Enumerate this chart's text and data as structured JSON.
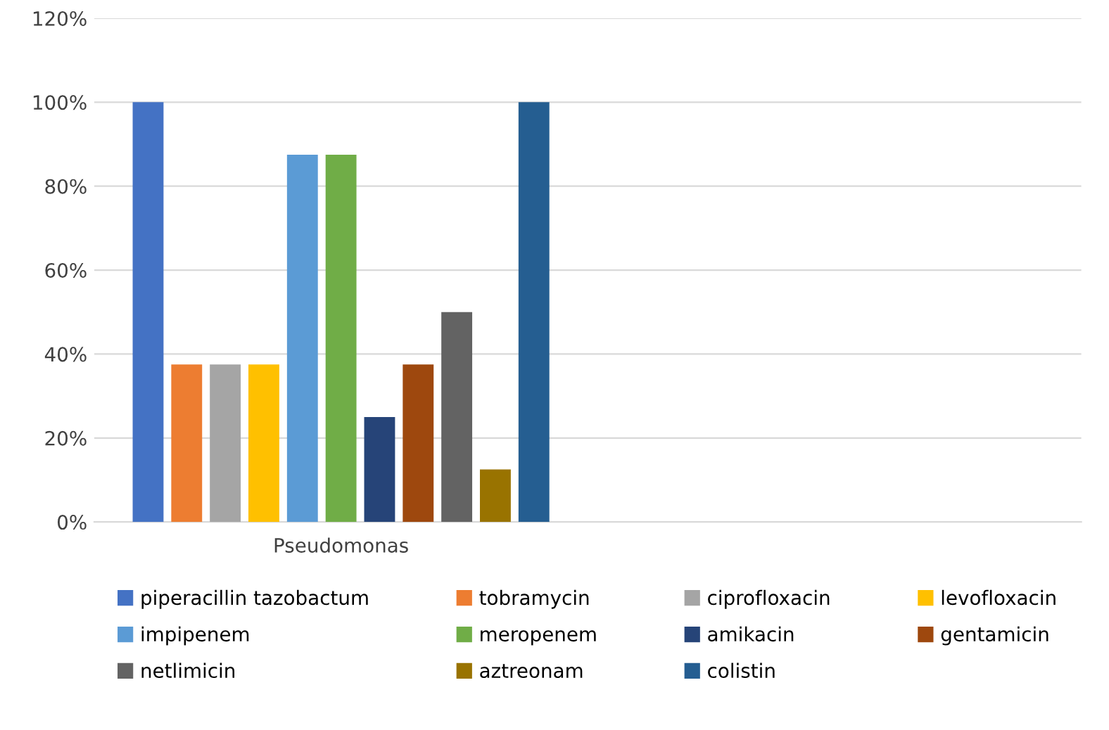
{
  "chart_data": {
    "type": "bar",
    "categories": [
      "Pseudomonas",
      null
    ],
    "series": [
      {
        "name": "piperacillin tazobactum",
        "color": "#4472c4",
        "values": [
          100,
          null
        ]
      },
      {
        "name": "tobramycin",
        "color": "#ed7d31",
        "values": [
          37.5,
          null
        ]
      },
      {
        "name": "ciprofloxacin",
        "color": "#a5a5a5",
        "values": [
          37.5,
          null
        ]
      },
      {
        "name": "levofloxacin",
        "color": "#ffc000",
        "values": [
          37.5,
          null
        ]
      },
      {
        "name": "impipenem",
        "color": "#5b9bd5",
        "values": [
          87.5,
          null
        ]
      },
      {
        "name": "meropenem",
        "color": "#70ad47",
        "values": [
          87.5,
          null
        ]
      },
      {
        "name": "amikacin",
        "color": "#264478",
        "values": [
          25,
          null
        ]
      },
      {
        "name": "gentamicin",
        "color": "#9e480e",
        "values": [
          37.5,
          null
        ]
      },
      {
        "name": "netlimicin",
        "color": "#636363",
        "values": [
          50,
          null
        ]
      },
      {
        "name": "aztreonam",
        "color": "#997300",
        "values": [
          12.5,
          null
        ]
      },
      {
        "name": "colistin",
        "color": "#255e91",
        "values": [
          100,
          null
        ]
      }
    ],
    "ylim": [
      0,
      120
    ],
    "yticks": [
      {
        "value": 0,
        "label": "0%"
      },
      {
        "value": 20,
        "label": "20%"
      },
      {
        "value": 40,
        "label": "40%"
      },
      {
        "value": 60,
        "label": "60%"
      },
      {
        "value": 80,
        "label": "80%"
      },
      {
        "value": 100,
        "label": "100%"
      },
      {
        "value": 120,
        "label": "120%"
      }
    ],
    "grid": "y",
    "legend": "bottom"
  }
}
